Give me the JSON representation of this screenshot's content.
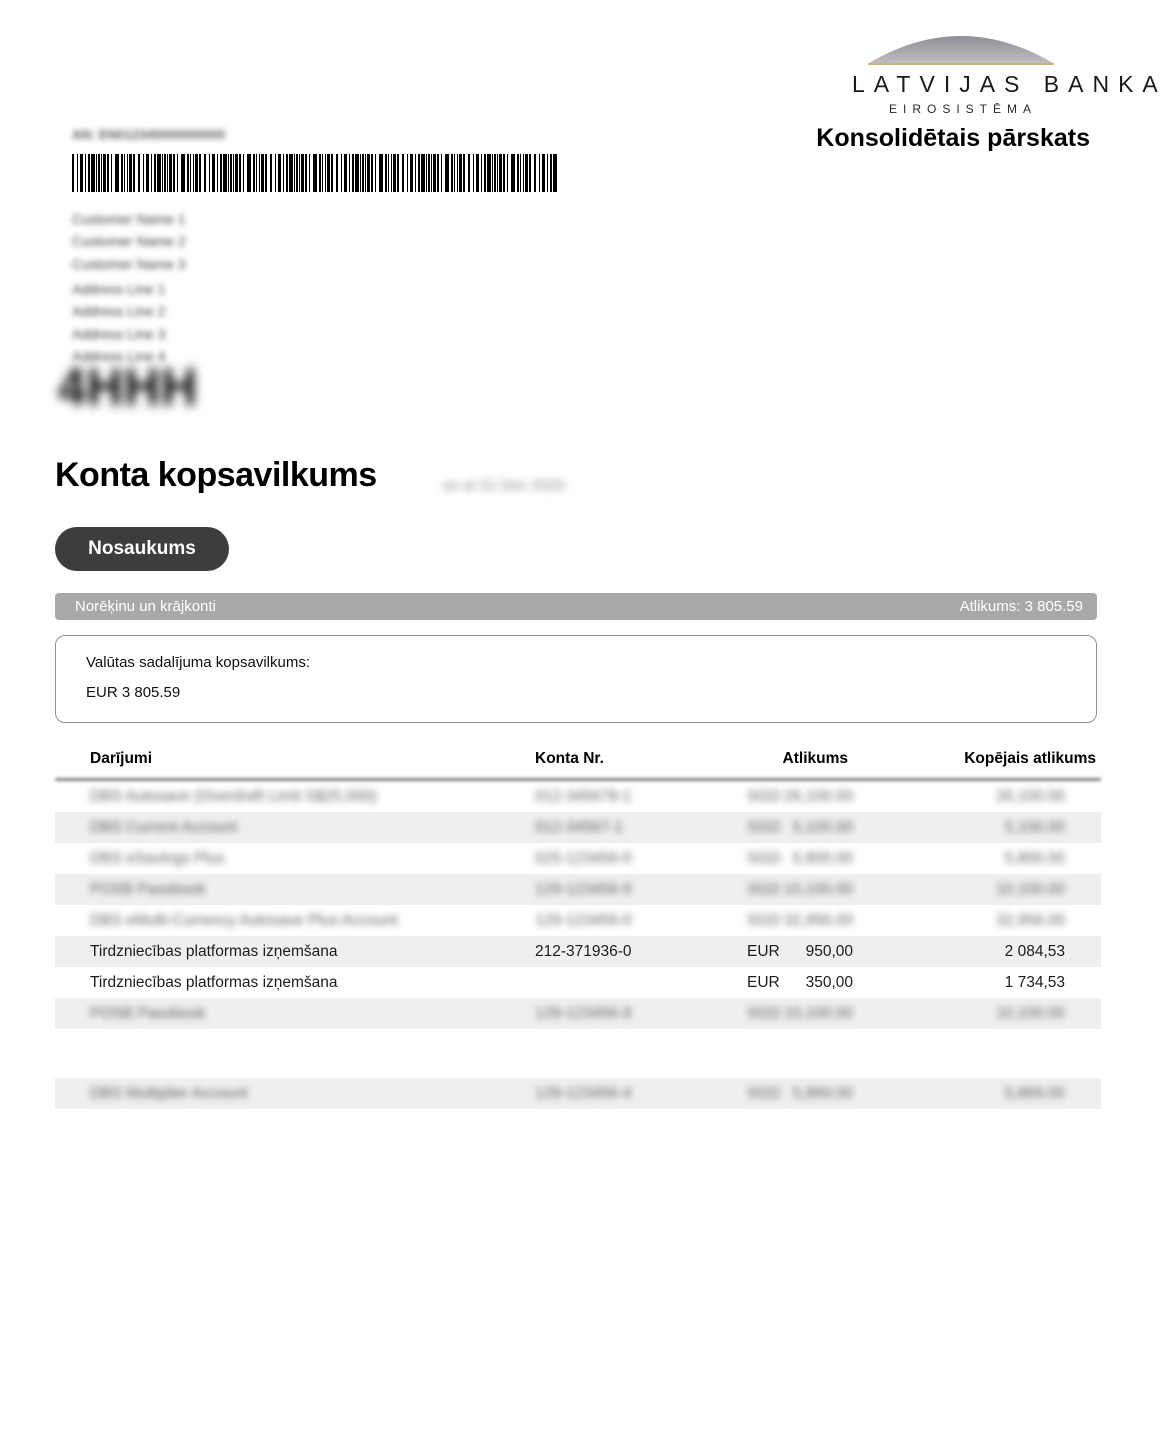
{
  "colors": {
    "gold": "#c9b57e",
    "pill": "#3d3d3d",
    "bar": "#a8a8a8",
    "stripe": "#efeff0",
    "dome_top": "#8f8f96",
    "dome_bottom": "#bcbcc1"
  },
  "header": {
    "bank_name": "LATVIJAS BANKA",
    "bank_subtitle": "EIROSISTĒMA",
    "report_title": "Konsolidētais pārskats"
  },
  "account_holder": {
    "id_line": "AN: EN012345000000000",
    "name_lines": [
      "Customer Name 1",
      "Customer Name 2",
      "Customer Name 3"
    ],
    "address_lines": [
      "Address Line 1",
      "Address Line 2",
      "Address Line 3",
      "Address Line 4"
    ],
    "postal_glyphs": "4HHH"
  },
  "summary": {
    "title": "Konta kopsavilkums",
    "as_of_date": "as at 31 Dec 2020",
    "section_pill": "Nosaukums",
    "bar_left": "Norēķinu un krājkonti",
    "bar_right": "Atlikums: 3 805.59",
    "currency_box_title": "Valūtas sadalījuma kopsavilkums:",
    "currency_box_value": "EUR 3 805.59"
  },
  "table": {
    "headers": [
      "Darījumi",
      "Konta Nr.",
      "Atlikums",
      "Kopējais atlikums"
    ],
    "rows": [
      {
        "name": "DBS Autosave (Overdraft Limit S$25,000)",
        "account": "012-345678-1",
        "currency": "SGD",
        "amount": "26,100.00",
        "total": "26,100.00",
        "blurred": true,
        "shaded": false,
        "spacer": false
      },
      {
        "name": "DBS Current Account",
        "account": "012-34567-1",
        "currency": "SGD",
        "amount": "5,100.00",
        "total": "5,100.00",
        "blurred": true,
        "shaded": true,
        "spacer": false
      },
      {
        "name": "DBS eSavings Plus",
        "account": "025-123456-0",
        "currency": "SGD",
        "amount": "5,800.00",
        "total": "5,800.00",
        "blurred": true,
        "shaded": false,
        "spacer": false
      },
      {
        "name": "POSB Passbook",
        "account": "129-123456-9",
        "currency": "SGD",
        "amount": "10,100.00",
        "total": "10,100.00",
        "blurred": true,
        "shaded": true,
        "spacer": false
      },
      {
        "name": "DBS eMulti-Currency Autosave Plus Account",
        "account": "129-123456-0",
        "currency": "SGD",
        "amount": "32,956.00",
        "total": "32,956.00",
        "blurred": true,
        "shaded": false,
        "spacer": false
      },
      {
        "name": "Tirdzniecības platformas izņemšana",
        "account": "212-371936-0",
        "currency": "EUR",
        "amount": "950,00",
        "total": "2 084,53",
        "blurred": false,
        "shaded": true,
        "spacer": false
      },
      {
        "name": "Tirdzniecības platformas izņemšana",
        "account": "",
        "currency": "EUR",
        "amount": "350,00",
        "total": "1 734,53",
        "blurred": false,
        "shaded": false,
        "spacer": false
      },
      {
        "name": "POSB Passbook",
        "account": "129-123456-9",
        "currency": "SGD",
        "amount": "10,100.00",
        "total": "10,100.00",
        "blurred": true,
        "shaded": true,
        "spacer": false
      },
      {
        "name": "",
        "account": "",
        "currency": "",
        "amount": "",
        "total": "",
        "blurred": false,
        "shaded": false,
        "spacer": true
      },
      {
        "name": "DBS Multiplier Account",
        "account": "129-123456-4",
        "currency": "SGD",
        "amount": "5,869.00",
        "total": "5,869.00",
        "blurred": true,
        "shaded": true,
        "spacer": false
      }
    ]
  }
}
